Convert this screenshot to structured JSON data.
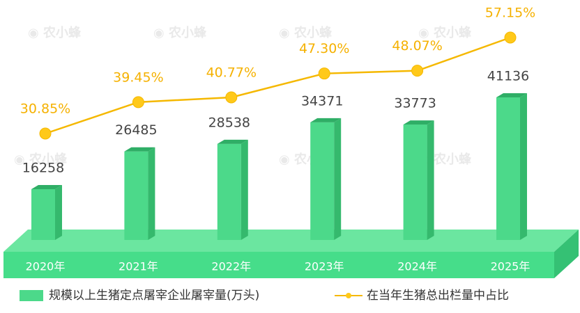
{
  "chart_data": {
    "type": "bar",
    "categories": [
      "2020年",
      "2021年",
      "2022年",
      "2023年",
      "2024年",
      "2025年"
    ],
    "series": [
      {
        "name": "规模以上生猪定点屠宰企业屠宰量(万头)",
        "type": "bar",
        "color": "#4cd98a",
        "values": [
          16258,
          26485,
          28538,
          34371,
          33773,
          41136
        ]
      },
      {
        "name": "在当年生猪总出栏量中占比",
        "type": "line",
        "axis": "y2",
        "color": "#f5b800",
        "values": [
          30.85,
          39.45,
          40.77,
          47.3,
          48.07,
          57.15
        ],
        "value_labels": [
          "30.85%",
          "39.45%",
          "40.77%",
          "47.30%",
          "48.07%",
          "57.15%"
        ]
      }
    ]
  }
}
